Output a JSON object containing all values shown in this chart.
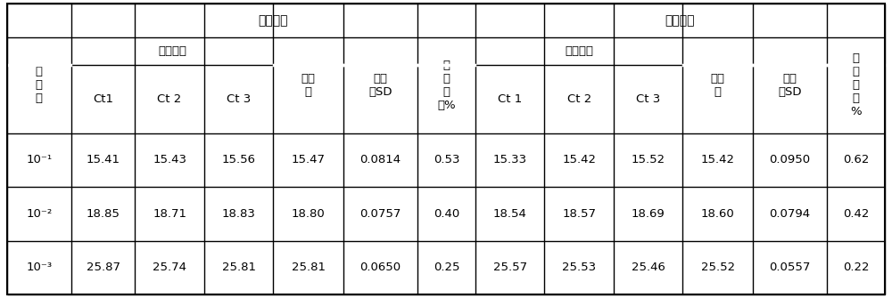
{
  "title_left": "批内重复",
  "title_right": "批间重复",
  "header_repeat": "重复次数",
  "header_avg": "平均\n值",
  "header_sd": "标准\n差SD",
  "header_cv_in": "变\n异\n系\n数%",
  "header_cv_out": "变\n异\n系\n数\n%",
  "header_xi": "稀\n释\n度",
  "ct_headers_in": [
    "Ct1",
    "Ct 2",
    "Ct 3"
  ],
  "ct_headers_out": [
    "Ct 1",
    "Ct 2",
    "Ct 3"
  ],
  "rows": [
    {
      "dilution": "10⁻¹",
      "in": [
        "15.41",
        "15.43",
        "15.56",
        "15.47",
        "0.0814",
        "0.53"
      ],
      "out": [
        "15.33",
        "15.42",
        "15.52",
        "15.42",
        "0.0950",
        "0.62"
      ]
    },
    {
      "dilution": "10⁻²",
      "in": [
        "18.85",
        "18.71",
        "18.83",
        "18.80",
        "0.0757",
        "0.40"
      ],
      "out": [
        "18.54",
        "18.57",
        "18.69",
        "18.60",
        "0.0794",
        "0.42"
      ]
    },
    {
      "dilution": "10⁻³",
      "in": [
        "25.87",
        "25.74",
        "25.81",
        "25.81",
        "0.0650",
        "0.25"
      ],
      "out": [
        "25.57",
        "25.53",
        "25.46",
        "25.52",
        "0.0557",
        "0.22"
      ]
    }
  ],
  "bg_color": "#ffffff",
  "line_color": "#000000",
  "font_size": 9.5
}
